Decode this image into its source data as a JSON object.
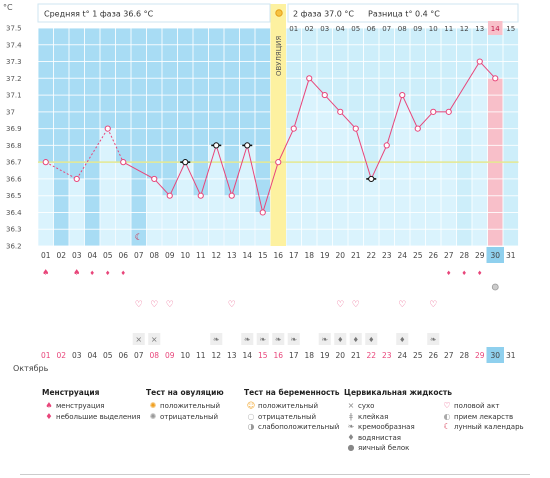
{
  "header": {
    "unit": "°C",
    "phase1_label": "Средняя t° 1 фаза 36.6 °C",
    "phase2_label": "2 фаза 37.0 °C",
    "diff_label": "Разница t° 0.4 °C",
    "ovulation_label": "ОВУЛЯЦИЯ",
    "month_label": "Октябрь"
  },
  "chart_data": {
    "type": "line",
    "ylabel": "°C",
    "ylim": [
      36.2,
      37.5
    ],
    "yticks": [
      36.2,
      36.3,
      36.4,
      36.5,
      36.6,
      36.7,
      36.8,
      36.9,
      37,
      37.1,
      37.2,
      37.3,
      37.4,
      37.5
    ],
    "cycle_days": [
      "01",
      "02",
      "03",
      "04",
      "05",
      "06",
      "07",
      "08",
      "09",
      "10",
      "11",
      "12",
      "13",
      "14",
      "15",
      "16",
      "17",
      "18",
      "19",
      "20",
      "21",
      "22",
      "23",
      "24",
      "25",
      "26",
      "27",
      "28",
      "29",
      "30",
      "31"
    ],
    "phase2_days": [
      "01",
      "02",
      "03",
      "04",
      "05",
      "06",
      "07",
      "08",
      "09",
      "10",
      "11",
      "12",
      "13",
      "14",
      "15"
    ],
    "calendar_dates": [
      "01",
      "02",
      "03",
      "04",
      "05",
      "06",
      "07",
      "08",
      "09",
      "10",
      "11",
      "12",
      "13",
      "14",
      "15",
      "16",
      "17",
      "18",
      "19",
      "20",
      "21",
      "22",
      "23",
      "24",
      "25",
      "26",
      "27",
      "28",
      "29",
      "30",
      "31"
    ],
    "weekend_dates": [
      "01",
      "02",
      "08",
      "09",
      "15",
      "16",
      "22",
      "23",
      "29"
    ],
    "today_index": 29,
    "ovulation_index": 15,
    "coverline": 36.7,
    "values": [
      36.7,
      null,
      36.6,
      null,
      36.9,
      36.7,
      null,
      36.6,
      36.5,
      36.7,
      36.5,
      36.8,
      36.5,
      36.8,
      36.4,
      36.7,
      36.9,
      37.2,
      37.1,
      37.0,
      36.9,
      36.6,
      36.8,
      37.1,
      36.9,
      37.0,
      37.0,
      null,
      37.3,
      37.2,
      null
    ],
    "marker_types": [
      "pink",
      "",
      "pink",
      "",
      "pink",
      "pink",
      "",
      "pink",
      "pink",
      "black",
      "pink",
      "black",
      "pink",
      "black",
      "pink",
      "pink",
      "pink",
      "pink",
      "pink",
      "pink",
      "pink",
      "black",
      "pink",
      "pink",
      "pink",
      "pink",
      "pink",
      "",
      "pink",
      "pink",
      ""
    ],
    "dashed_after": [
      0,
      2,
      4,
      6
    ],
    "menstruation": [
      "heavy",
      "",
      "heavy",
      "light",
      "light",
      "light",
      "",
      "",
      "",
      "",
      "",
      "",
      "",
      "",
      "",
      "",
      "",
      "",
      "",
      "",
      "",
      "",
      "",
      "",
      "",
      "",
      "light",
      "light",
      "light",
      "",
      ""
    ],
    "ovulation_test": [
      "",
      "",
      "",
      "",
      "",
      "",
      "",
      "",
      "",
      "",
      "",
      "",
      "",
      "",
      "",
      "",
      "",
      "",
      "",
      "",
      "",
      "",
      "",
      "",
      "",
      "",
      "",
      "",
      "",
      "negative",
      ""
    ],
    "intercourse": [
      "",
      "",
      "",
      "",
      "",
      "",
      "heart",
      "heart",
      "heart",
      "",
      "",
      "",
      "heart",
      "",
      "",
      "",
      "",
      "",
      "",
      "heart",
      "heart",
      "",
      "",
      "heart",
      "",
      "heart",
      "",
      "",
      "",
      "",
      ""
    ],
    "fluid": [
      "",
      "",
      "",
      "",
      "",
      "",
      "dry",
      "dry",
      "",
      "",
      "",
      "creamy",
      "",
      "creamy",
      "creamy",
      "creamy",
      "creamy",
      "",
      "creamy",
      "watery",
      "watery",
      "watery",
      "",
      "watery",
      "",
      "creamy",
      "",
      "",
      "",
      "",
      ""
    ]
  },
  "legend": {
    "menstruation": {
      "title": "Менструация",
      "items": [
        {
          "icon": "menstruation-icon",
          "label": "менструация"
        },
        {
          "icon": "spotting-icon",
          "label": "небольшие выделения"
        }
      ]
    },
    "ovulation_test": {
      "title": "Тест на овуляцию",
      "items": [
        {
          "icon": "ovulation-positive-icon",
          "label": "положительный"
        },
        {
          "icon": "ovulation-negative-icon",
          "label": "отрицательный"
        }
      ]
    },
    "pregnancy_test": {
      "title": "Тест на беременность",
      "items": [
        {
          "icon": "pregnancy-positive-icon",
          "label": "положительный"
        },
        {
          "icon": "pregnancy-negative-icon",
          "label": "отрицательный"
        },
        {
          "icon": "pregnancy-weak-icon",
          "label": "слабоположительный"
        }
      ]
    },
    "cervical_fluid": {
      "title": "Цервикальная жидкость",
      "items": [
        {
          "icon": "dry-icon",
          "label": "сухо"
        },
        {
          "icon": "sticky-icon",
          "label": "клейкая"
        },
        {
          "icon": "creamy-icon",
          "label": "кремообразная"
        },
        {
          "icon": "watery-icon",
          "label": "водянистая"
        },
        {
          "icon": "egg-white-icon",
          "label": "яичный белок"
        }
      ]
    },
    "other": {
      "items": [
        {
          "icon": "heart-icon",
          "label": "половой акт"
        },
        {
          "icon": "medicine-icon",
          "label": "прием лекарств"
        },
        {
          "icon": "moon-icon",
          "label": "лунный календарь"
        }
      ]
    }
  },
  "colors": {
    "phase1": "#a8dcf4",
    "phase2": "#cdeefa",
    "bar": "#daf3fd",
    "today_bar": "#f8bfc9",
    "ovulation": "#fdf1a0",
    "line": "#e8457a",
    "coverline": "#e4e890",
    "grid": "#ffffff",
    "weekend": "#e8457a",
    "today_cell": "#8fd0ee"
  }
}
